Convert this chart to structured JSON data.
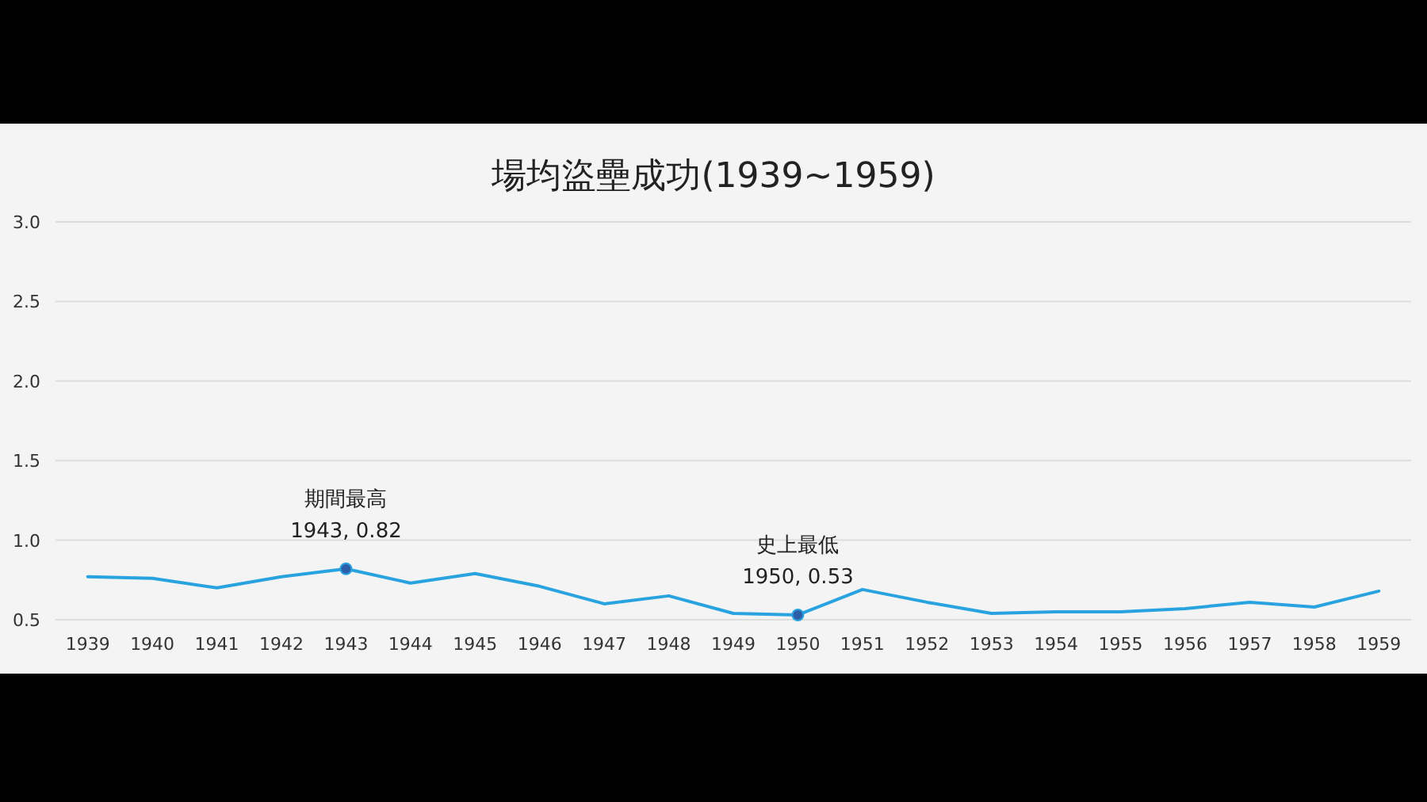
{
  "chart_data": {
    "type": "line",
    "title": "場均盜壘成功(1939~1959)",
    "categories": [
      "1939",
      "1940",
      "1941",
      "1942",
      "1943",
      "1944",
      "1945",
      "1946",
      "1947",
      "1948",
      "1949",
      "1950",
      "1951",
      "1952",
      "1953",
      "1954",
      "1955",
      "1956",
      "1957",
      "1958",
      "1959"
    ],
    "series": [
      {
        "color": "#29a3e0",
        "values": [
          0.77,
          0.76,
          0.7,
          0.77,
          0.82,
          0.73,
          0.79,
          0.71,
          0.6,
          0.65,
          0.54,
          0.53,
          0.69,
          0.61,
          0.54,
          0.55,
          0.55,
          0.57,
          0.61,
          0.58,
          0.68
        ]
      }
    ],
    "ylim": [
      0.5,
      3.0
    ],
    "yticks": [
      0.5,
      {
        "value": 1,
        "label": "1.0"
      },
      1.5,
      {
        "value": 2,
        "label": "2.0"
      },
      2.5,
      {
        "value": 3,
        "label": "3.0"
      }
    ],
    "grid": "y",
    "annotations": [
      {
        "text": "期間最高\n1943, 0.82",
        "x": "1943",
        "y": 0.82
      },
      {
        "text": "史上最低\n1950, 0.53",
        "x": "1950",
        "y": 0.53
      }
    ]
  }
}
